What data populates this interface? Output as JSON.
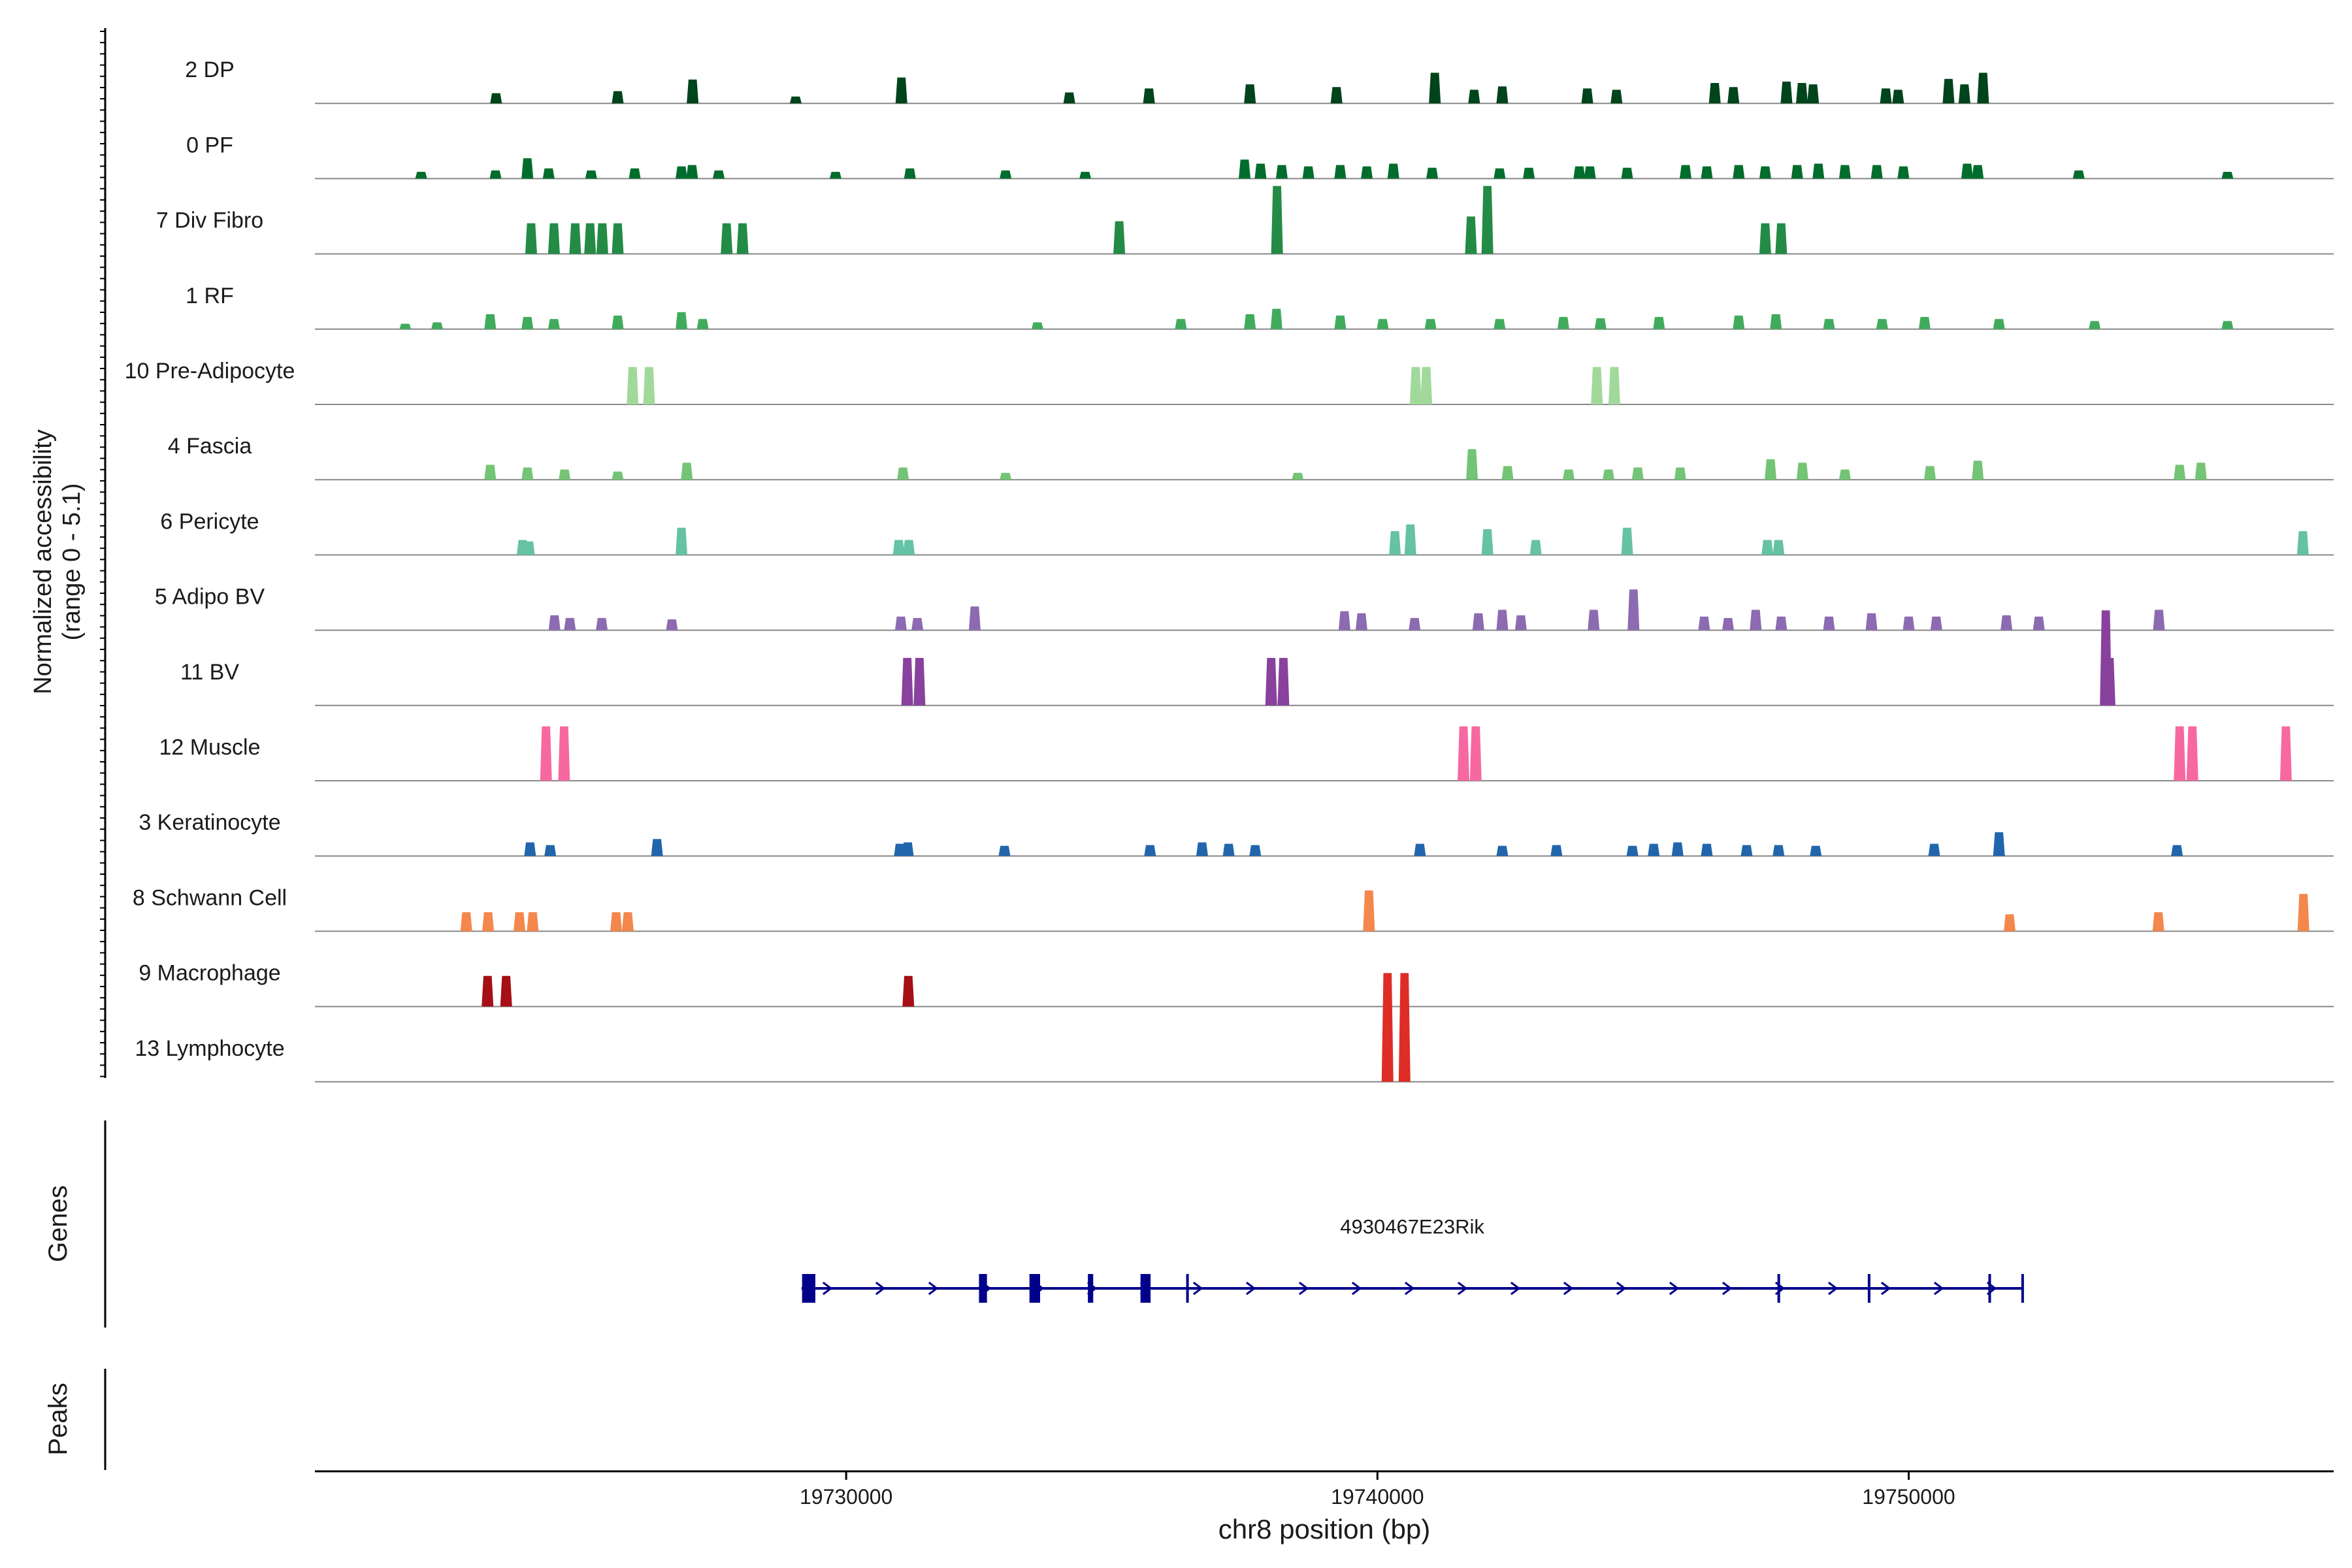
{
  "chart_data": {
    "type": "area",
    "title": "",
    "xlabel": "chr8 position (bp)",
    "ylabel_line1": "Normalized accessibility",
    "ylabel_line2": "(range 0 - 5.1)",
    "y_range": [
      0,
      5.1
    ],
    "xlim": [
      19720000,
      19758000
    ],
    "x_ticks": [
      19730000,
      19740000,
      19750000
    ],
    "x_tick_labels": [
      "19730000",
      "19740000",
      "19750000"
    ],
    "grid": false,
    "panel_labels": {
      "genes": "Genes",
      "peaks": "Peaks"
    },
    "tracks": [
      {
        "name": "2 DP",
        "color": "#00441b",
        "peaks": [
          [
            19723410,
            0.15
          ],
          [
            19725700,
            0.18
          ],
          [
            19727110,
            0.35
          ],
          [
            19729050,
            0.1
          ],
          [
            19731040,
            0.38
          ],
          [
            19734200,
            0.16
          ],
          [
            19735700,
            0.22
          ],
          [
            19737600,
            0.28
          ],
          [
            19739230,
            0.24
          ],
          [
            19741080,
            0.45
          ],
          [
            19741820,
            0.2
          ],
          [
            19742350,
            0.25
          ],
          [
            19743950,
            0.22
          ],
          [
            19744500,
            0.2
          ],
          [
            19746350,
            0.3
          ],
          [
            19746700,
            0.24
          ],
          [
            19747700,
            0.32
          ],
          [
            19747990,
            0.3
          ],
          [
            19748200,
            0.28
          ],
          [
            19749570,
            0.22
          ],
          [
            19749800,
            0.2
          ],
          [
            19750750,
            0.36
          ],
          [
            19751050,
            0.28
          ],
          [
            19751400,
            0.45
          ]
        ]
      },
      {
        "name": "0 PF",
        "color": "#006d2c",
        "peaks": [
          [
            19722000,
            0.1
          ],
          [
            19723400,
            0.12
          ],
          [
            19724000,
            0.3
          ],
          [
            19724400,
            0.15
          ],
          [
            19725200,
            0.12
          ],
          [
            19726020,
            0.15
          ],
          [
            19726900,
            0.18
          ],
          [
            19727100,
            0.2
          ],
          [
            19727600,
            0.12
          ],
          [
            19729800,
            0.1
          ],
          [
            19731200,
            0.15
          ],
          [
            19733000,
            0.12
          ],
          [
            19734500,
            0.1
          ],
          [
            19737500,
            0.28
          ],
          [
            19737800,
            0.22
          ],
          [
            19738200,
            0.2
          ],
          [
            19738700,
            0.18
          ],
          [
            19739300,
            0.2
          ],
          [
            19739800,
            0.18
          ],
          [
            19740300,
            0.22
          ],
          [
            19741030,
            0.16
          ],
          [
            19742300,
            0.15
          ],
          [
            19742850,
            0.16
          ],
          [
            19743800,
            0.18
          ],
          [
            19744000,
            0.18
          ],
          [
            19744700,
            0.16
          ],
          [
            19745800,
            0.2
          ],
          [
            19746200,
            0.18
          ],
          [
            19746800,
            0.2
          ],
          [
            19747300,
            0.18
          ],
          [
            19747900,
            0.2
          ],
          [
            19748300,
            0.22
          ],
          [
            19748800,
            0.2
          ],
          [
            19749400,
            0.2
          ],
          [
            19749900,
            0.18
          ],
          [
            19751100,
            0.22
          ],
          [
            19751300,
            0.2
          ],
          [
            19753200,
            0.12
          ],
          [
            19756000,
            0.1
          ]
        ]
      },
      {
        "name": "7 Div Fibro",
        "color": "#238b45",
        "peaks": [
          [
            19724070,
            0.45
          ],
          [
            19724500,
            0.45
          ],
          [
            19724900,
            0.45
          ],
          [
            19725180,
            0.45
          ],
          [
            19725410,
            0.45
          ],
          [
            19725700,
            0.45
          ],
          [
            19727750,
            0.45
          ],
          [
            19728050,
            0.45
          ],
          [
            19735140,
            0.48
          ],
          [
            19738110,
            1.0
          ],
          [
            19741760,
            0.55
          ],
          [
            19742070,
            1.0
          ],
          [
            19747300,
            0.45
          ],
          [
            19747600,
            0.45
          ]
        ]
      },
      {
        "name": "1 RF",
        "color": "#41ab5d",
        "peaks": [
          [
            19721700,
            0.08
          ],
          [
            19722300,
            0.1
          ],
          [
            19723300,
            0.22
          ],
          [
            19724000,
            0.18
          ],
          [
            19724500,
            0.15
          ],
          [
            19725700,
            0.2
          ],
          [
            19726900,
            0.25
          ],
          [
            19727300,
            0.15
          ],
          [
            19733600,
            0.1
          ],
          [
            19736300,
            0.15
          ],
          [
            19737600,
            0.22
          ],
          [
            19738100,
            0.3
          ],
          [
            19739300,
            0.2
          ],
          [
            19740100,
            0.15
          ],
          [
            19741000,
            0.15
          ],
          [
            19742300,
            0.15
          ],
          [
            19743500,
            0.18
          ],
          [
            19744200,
            0.16
          ],
          [
            19745300,
            0.18
          ],
          [
            19746800,
            0.2
          ],
          [
            19747500,
            0.22
          ],
          [
            19748500,
            0.15
          ],
          [
            19749500,
            0.15
          ],
          [
            19750300,
            0.18
          ],
          [
            19751700,
            0.15
          ],
          [
            19753500,
            0.12
          ],
          [
            19756000,
            0.12
          ]
        ]
      },
      {
        "name": "10 Pre-Adipocyte",
        "color": "#a1d99b",
        "peaks": [
          [
            19725980,
            0.55
          ],
          [
            19726290,
            0.55
          ],
          [
            19740720,
            0.55
          ],
          [
            19740920,
            0.55
          ],
          [
            19744130,
            0.55
          ],
          [
            19744460,
            0.55
          ]
        ]
      },
      {
        "name": "4 Fascia",
        "color": "#74c476",
        "peaks": [
          [
            19723300,
            0.22
          ],
          [
            19724000,
            0.18
          ],
          [
            19724700,
            0.15
          ],
          [
            19725700,
            0.12
          ],
          [
            19727000,
            0.25
          ],
          [
            19731070,
            0.18
          ],
          [
            19733000,
            0.1
          ],
          [
            19738500,
            0.1
          ],
          [
            19741780,
            0.45
          ],
          [
            19742450,
            0.2
          ],
          [
            19743600,
            0.15
          ],
          [
            19744350,
            0.15
          ],
          [
            19744900,
            0.18
          ],
          [
            19745700,
            0.18
          ],
          [
            19747400,
            0.3
          ],
          [
            19748000,
            0.25
          ],
          [
            19748800,
            0.15
          ],
          [
            19750400,
            0.2
          ],
          [
            19751300,
            0.28
          ],
          [
            19755100,
            0.22
          ],
          [
            19755500,
            0.25
          ]
        ]
      },
      {
        "name": "6 Pericyte",
        "color": "#66c2a4",
        "peaks": [
          [
            19723910,
            0.22
          ],
          [
            19724030,
            0.2
          ],
          [
            19726900,
            0.4
          ],
          [
            19730990,
            0.22
          ],
          [
            19731180,
            0.22
          ],
          [
            19740330,
            0.35
          ],
          [
            19740620,
            0.45
          ],
          [
            19742070,
            0.38
          ],
          [
            19742980,
            0.22
          ],
          [
            19744700,
            0.4
          ],
          [
            19747340,
            0.22
          ],
          [
            19747550,
            0.22
          ],
          [
            19757420,
            0.35
          ]
        ]
      },
      {
        "name": "5 Adipo BV",
        "color": "#8c6bb1",
        "peaks": [
          [
            19724510,
            0.22
          ],
          [
            19724800,
            0.18
          ],
          [
            19725400,
            0.18
          ],
          [
            19726720,
            0.16
          ],
          [
            19731030,
            0.2
          ],
          [
            19731340,
            0.18
          ],
          [
            19732420,
            0.35
          ],
          [
            19739380,
            0.28
          ],
          [
            19739700,
            0.25
          ],
          [
            19740700,
            0.18
          ],
          [
            19741900,
            0.25
          ],
          [
            19742350,
            0.3
          ],
          [
            19742700,
            0.22
          ],
          [
            19744070,
            0.3
          ],
          [
            19744820,
            0.6
          ],
          [
            19746150,
            0.2
          ],
          [
            19746600,
            0.18
          ],
          [
            19747120,
            0.3
          ],
          [
            19747600,
            0.2
          ],
          [
            19748500,
            0.2
          ],
          [
            19749300,
            0.25
          ],
          [
            19750000,
            0.2
          ],
          [
            19750520,
            0.2
          ],
          [
            19751840,
            0.22
          ],
          [
            19752450,
            0.2
          ],
          [
            19754710,
            0.3
          ]
        ]
      },
      {
        "name": "11 BV",
        "color": "#88419d",
        "peaks": [
          [
            19731150,
            0.7
          ],
          [
            19731380,
            0.7
          ],
          [
            19738000,
            0.7
          ],
          [
            19738230,
            0.7
          ],
          [
            19753710,
            1.4
          ],
          [
            19753780,
            0.7
          ]
        ]
      },
      {
        "name": "12 Muscle",
        "color": "#f768a1",
        "peaks": [
          [
            19724350,
            0.8
          ],
          [
            19724690,
            0.8
          ],
          [
            19741620,
            0.8
          ],
          [
            19741850,
            0.8
          ],
          [
            19755100,
            0.8
          ],
          [
            19755340,
            0.8
          ],
          [
            19757100,
            0.8
          ]
        ]
      },
      {
        "name": "3 Keratinocyte",
        "color": "#2166ac",
        "peaks": [
          [
            19724050,
            0.2
          ],
          [
            19724430,
            0.16
          ],
          [
            19726440,
            0.25
          ],
          [
            19731010,
            0.18
          ],
          [
            19731160,
            0.2
          ],
          [
            19732980,
            0.15
          ],
          [
            19735720,
            0.16
          ],
          [
            19736700,
            0.2
          ],
          [
            19737200,
            0.18
          ],
          [
            19737700,
            0.16
          ],
          [
            19740800,
            0.18
          ],
          [
            19742350,
            0.15
          ],
          [
            19743370,
            0.16
          ],
          [
            19744800,
            0.15
          ],
          [
            19745200,
            0.18
          ],
          [
            19745650,
            0.2
          ],
          [
            19746200,
            0.18
          ],
          [
            19746950,
            0.16
          ],
          [
            19747550,
            0.16
          ],
          [
            19748250,
            0.15
          ],
          [
            19750480,
            0.18
          ],
          [
            19751700,
            0.35
          ],
          [
            19755050,
            0.16
          ]
        ]
      },
      {
        "name": "8 Schwann Cell",
        "color": "#f4874b",
        "peaks": [
          [
            19722850,
            0.28
          ],
          [
            19723260,
            0.28
          ],
          [
            19723850,
            0.28
          ],
          [
            19724100,
            0.28
          ],
          [
            19725670,
            0.28
          ],
          [
            19725890,
            0.28
          ],
          [
            19739840,
            0.6
          ],
          [
            19751900,
            0.25
          ],
          [
            19754700,
            0.28
          ],
          [
            19757430,
            0.55
          ]
        ]
      },
      {
        "name": "9 Macrophage",
        "color": "#a50f15",
        "peaks": [
          [
            19723250,
            0.45
          ],
          [
            19723600,
            0.45
          ],
          [
            19731170,
            0.45
          ]
        ]
      },
      {
        "name": "13 Lymphocyte",
        "color": "#de2d26",
        "peaks": [
          [
            19740190,
            1.6
          ],
          [
            19740510,
            1.6
          ]
        ]
      }
    ],
    "gene": {
      "name": "4930467E23Rik",
      "color": "#00008b",
      "start": 19729160,
      "end": 19752150,
      "strand": "+",
      "exons": [
        [
          19729170,
          19729420
        ],
        [
          19732500,
          19732650
        ],
        [
          19733450,
          19733650
        ],
        [
          19734550,
          19734650
        ],
        [
          19735540,
          19735730
        ],
        [
          19736400,
          19736430
        ],
        [
          19747530,
          19747560
        ],
        [
          19749230,
          19749260
        ],
        [
          19751500,
          19751520
        ],
        [
          19752120,
          19752150
        ]
      ]
    },
    "peaks_track": []
  }
}
